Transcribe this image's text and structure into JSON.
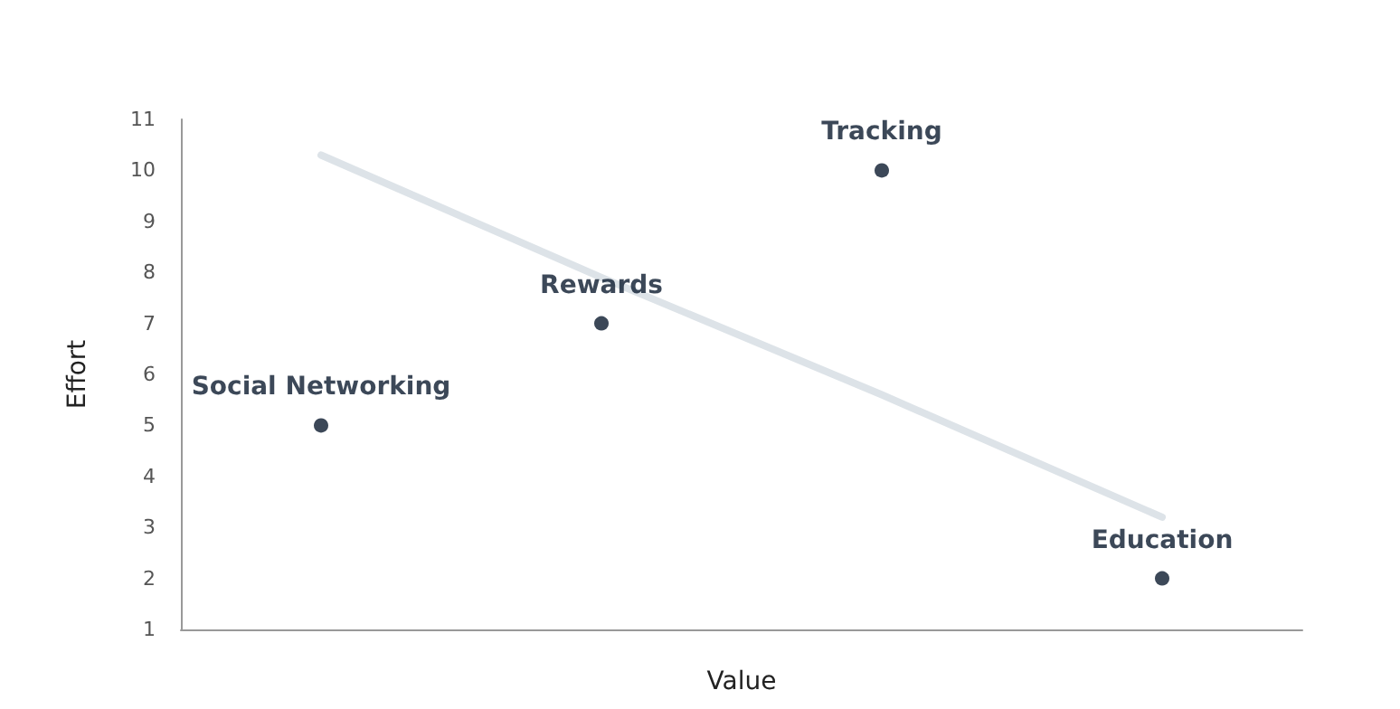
{
  "chart_data": {
    "type": "scatter",
    "xlabel": "Value",
    "ylabel": "Effort",
    "categories": [
      null,
      null,
      null,
      null
    ],
    "ylim": [
      1,
      11
    ],
    "yticks": [
      1,
      2,
      3,
      4,
      5,
      6,
      7,
      8,
      9,
      10,
      11
    ],
    "tick_labels": "y",
    "grid": false,
    "series": [
      {
        "color": "#0b1a2e",
        "marker": "circle",
        "values": [
          5,
          7,
          10,
          2
        ]
      },
      {
        "type": "line",
        "color": "#dde3e8",
        "marker": "none",
        "values": [
          10.3,
          7.9,
          5.6,
          3.2
        ]
      }
    ],
    "annotations": [
      "Social Networking",
      "Rewards",
      "Tracking",
      "Education"
    ]
  }
}
